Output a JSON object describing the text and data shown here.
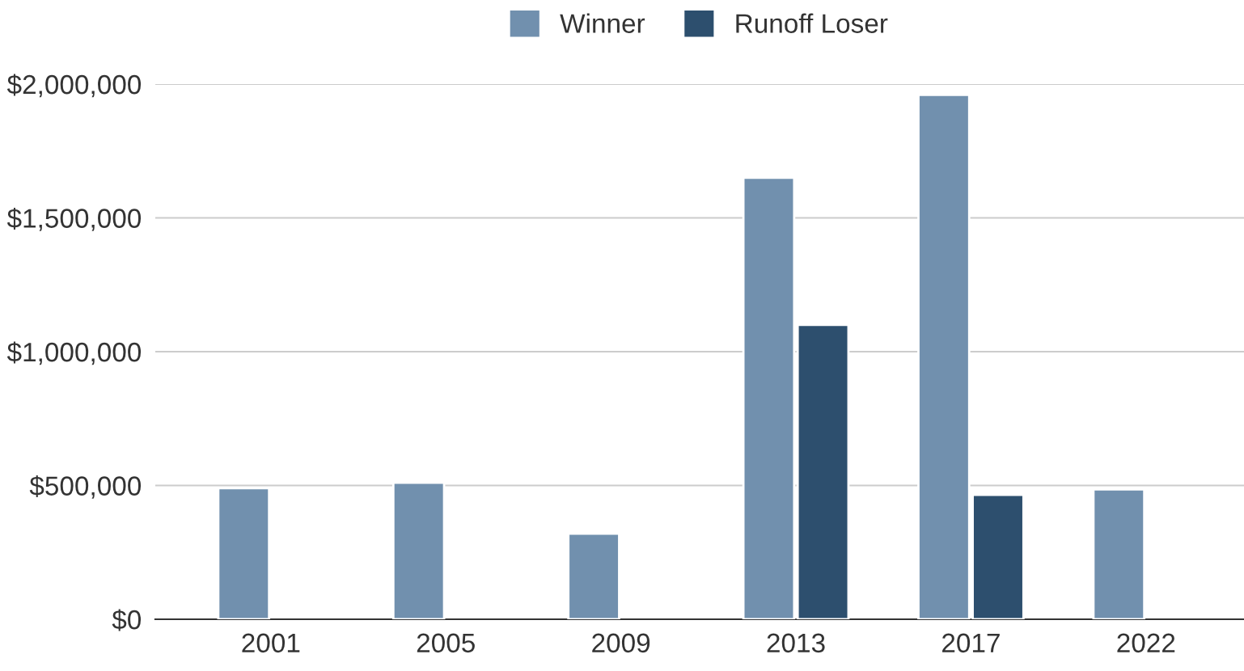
{
  "chart_data": {
    "type": "bar",
    "categories": [
      "2001",
      "2005",
      "2009",
      "2013",
      "2017",
      "2022"
    ],
    "series": [
      {
        "name": "Winner",
        "color": "#7190ae",
        "values": [
          490000,
          510000,
          320000,
          1650000,
          1960000,
          485000
        ]
      },
      {
        "name": "Runoff Loser",
        "color": "#2d4f6e",
        "values": [
          null,
          null,
          null,
          1100000,
          465000,
          null
        ]
      }
    ],
    "ylim": [
      0,
      2000000
    ],
    "yticks": [
      {
        "value": 0,
        "label": "$0"
      },
      {
        "value": 500000,
        "label": "$500,000"
      },
      {
        "value": 1000000,
        "label": "$1,000,000"
      },
      {
        "value": 1500000,
        "label": "$1,500,000"
      },
      {
        "value": 2000000,
        "label": "$2,000,000"
      }
    ],
    "grid": "y",
    "legend": "top"
  }
}
